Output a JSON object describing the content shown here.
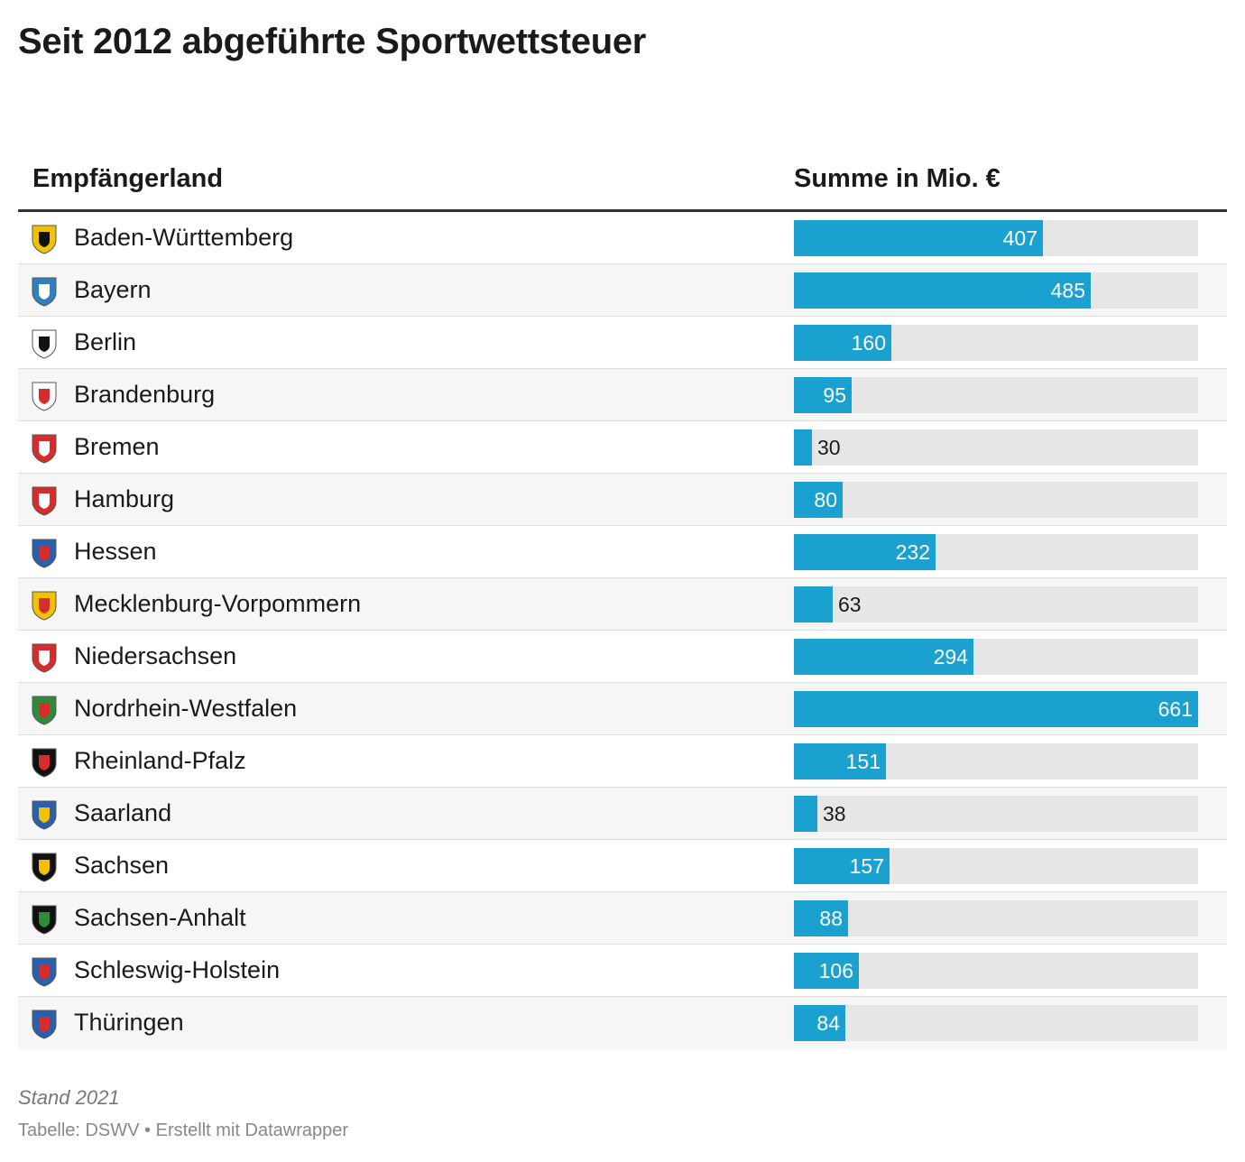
{
  "title": "Seit 2012 abgeführte Sportwettsteuer",
  "columns": {
    "left": "Empfängerland",
    "right": "Summe in Mio. €"
  },
  "chart_data": {
    "type": "bar",
    "orientation": "horizontal",
    "title": "Seit 2012 abgeführte Sportwettsteuer",
    "xlabel": "Summe in Mio. €",
    "ylabel": "Empfängerland",
    "xlim": [
      0,
      661
    ],
    "categories": [
      "Baden-Württemberg",
      "Bayern",
      "Berlin",
      "Brandenburg",
      "Bremen",
      "Hamburg",
      "Hessen",
      "Mecklenburg-Vorpommern",
      "Niedersachsen",
      "Nordrhein-Westfalen",
      "Rheinland-Pfalz",
      "Saarland",
      "Sachsen",
      "Sachsen-Anhalt",
      "Schleswig-Holstein",
      "Thüringen"
    ],
    "values": [
      407,
      485,
      160,
      95,
      30,
      80,
      232,
      63,
      294,
      661,
      151,
      38,
      157,
      88,
      106,
      84
    ],
    "bar_color": "#1ba1d0",
    "track_color": "#e6e6e6"
  },
  "crests": [
    {
      "icon": "baden-wuerttemberg-crest-icon",
      "primary": "#f2c200",
      "secondary": "#111111"
    },
    {
      "icon": "bayern-crest-icon",
      "primary": "#2f7fc1",
      "secondary": "#ffffff"
    },
    {
      "icon": "berlin-crest-icon",
      "primary": "#ffffff",
      "secondary": "#111111"
    },
    {
      "icon": "brandenburg-crest-icon",
      "primary": "#ffffff",
      "secondary": "#d62c2c"
    },
    {
      "icon": "bremen-crest-icon",
      "primary": "#d62c2c",
      "secondary": "#ffffff"
    },
    {
      "icon": "hamburg-crest-icon",
      "primary": "#d62c2c",
      "secondary": "#ffffff"
    },
    {
      "icon": "hessen-crest-icon",
      "primary": "#2a5fae",
      "secondary": "#d62c2c"
    },
    {
      "icon": "mecklenburg-vorpommern-crest-icon",
      "primary": "#f2c200",
      "secondary": "#d62c2c"
    },
    {
      "icon": "niedersachsen-crest-icon",
      "primary": "#d62c2c",
      "secondary": "#ffffff"
    },
    {
      "icon": "nordrhein-westfalen-crest-icon",
      "primary": "#2e8b3a",
      "secondary": "#d62c2c"
    },
    {
      "icon": "rheinland-pfalz-crest-icon",
      "primary": "#111111",
      "secondary": "#d62c2c"
    },
    {
      "icon": "saarland-crest-icon",
      "primary": "#2a5fae",
      "secondary": "#f2c200"
    },
    {
      "icon": "sachsen-crest-icon",
      "primary": "#111111",
      "secondary": "#f2c200"
    },
    {
      "icon": "sachsen-anhalt-crest-icon",
      "primary": "#111111",
      "secondary": "#2e8b3a"
    },
    {
      "icon": "schleswig-holstein-crest-icon",
      "primary": "#2a5fae",
      "secondary": "#d62c2c"
    },
    {
      "icon": "thueringen-crest-icon",
      "primary": "#2a5fae",
      "secondary": "#d62c2c"
    }
  ],
  "footer": {
    "note": "Stand 2021",
    "source": "Tabelle: DSWV • Erstellt mit Datawrapper"
  }
}
